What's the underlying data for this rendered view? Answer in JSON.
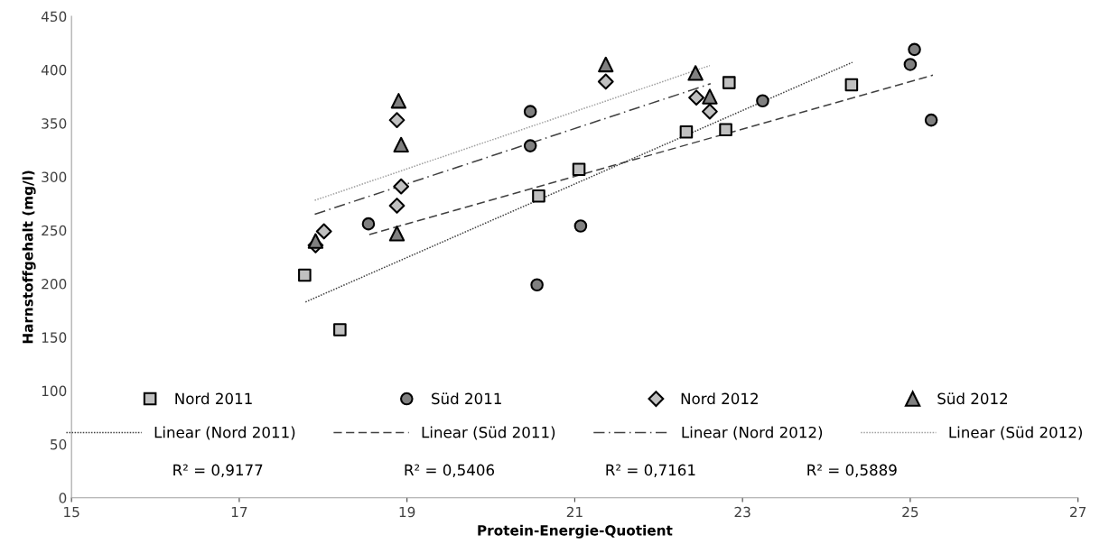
{
  "chart_data": {
    "type": "scatter",
    "xlabel": "Protein-Energie-Quotient",
    "ylabel": "Harnstoffgehalt (mg/l)",
    "xlim": [
      15,
      27
    ],
    "xticks": [
      15,
      17,
      19,
      21,
      23,
      25,
      27
    ],
    "ylim": [
      0,
      450
    ],
    "yticks": [
      0,
      50,
      100,
      150,
      200,
      250,
      300,
      350,
      400,
      450
    ],
    "grid": false,
    "legend": "bottom",
    "series": [
      {
        "name": "Nord 2011",
        "marker": "square",
        "color": "#c0c0c0",
        "x": [
          17.78,
          18.2,
          20.57,
          21.05,
          22.33,
          22.8,
          22.84,
          24.3
        ],
        "values": [
          208,
          157,
          282,
          307,
          342,
          344,
          388,
          386
        ]
      },
      {
        "name": "Süd 2011",
        "marker": "circle",
        "color": "#808080",
        "x": [
          18.54,
          20.47,
          20.47,
          20.55,
          21.07,
          23.24,
          25.0,
          25.05,
          25.25
        ],
        "values": [
          256,
          361,
          329,
          199,
          254,
          371,
          405,
          419,
          353
        ]
      },
      {
        "name": "Nord 2012",
        "marker": "diamond",
        "color": "#c0c0c0",
        "x": [
          17.91,
          18.01,
          18.88,
          18.93,
          18.88,
          21.37,
          22.45,
          22.61
        ],
        "values": [
          236,
          249,
          273,
          291,
          353,
          389,
          374,
          361
        ]
      },
      {
        "name": "Süd 2012",
        "marker": "triangle",
        "color": "#808080",
        "x": [
          17.91,
          18.88,
          18.93,
          18.9,
          21.37,
          22.44,
          22.61
        ],
        "values": [
          240,
          247,
          330,
          371,
          405,
          397,
          375
        ]
      },
      {
        "name": "Linear (Nord 2011)",
        "type": "line",
        "marker": "none",
        "line_style": "dotted",
        "color": "#404040",
        "x": [
          17.79,
          24.31
        ],
        "values": [
          183,
          407
        ]
      },
      {
        "name": "Linear (Süd 2011)",
        "type": "line",
        "marker": "none",
        "line_style": "dashed",
        "color": "#404040",
        "x": [
          18.55,
          25.27
        ],
        "values": [
          246,
          395
        ]
      },
      {
        "name": "Linear (Nord 2012)",
        "type": "line",
        "marker": "none",
        "line_style": "dashdot",
        "color": "#404040",
        "x": [
          17.9,
          22.62
        ],
        "values": [
          265,
          387
        ]
      },
      {
        "name": "Linear (Süd 2012)",
        "type": "line",
        "marker": "none",
        "line_style": "dotted",
        "color": "#a0a0a0",
        "x": [
          17.9,
          22.61
        ],
        "values": [
          278,
          404
        ]
      }
    ],
    "annotations": [
      "R² = 0,9177",
      "R² = 0,5406",
      "R² = 0,7161",
      "R² = 0,5889"
    ]
  }
}
